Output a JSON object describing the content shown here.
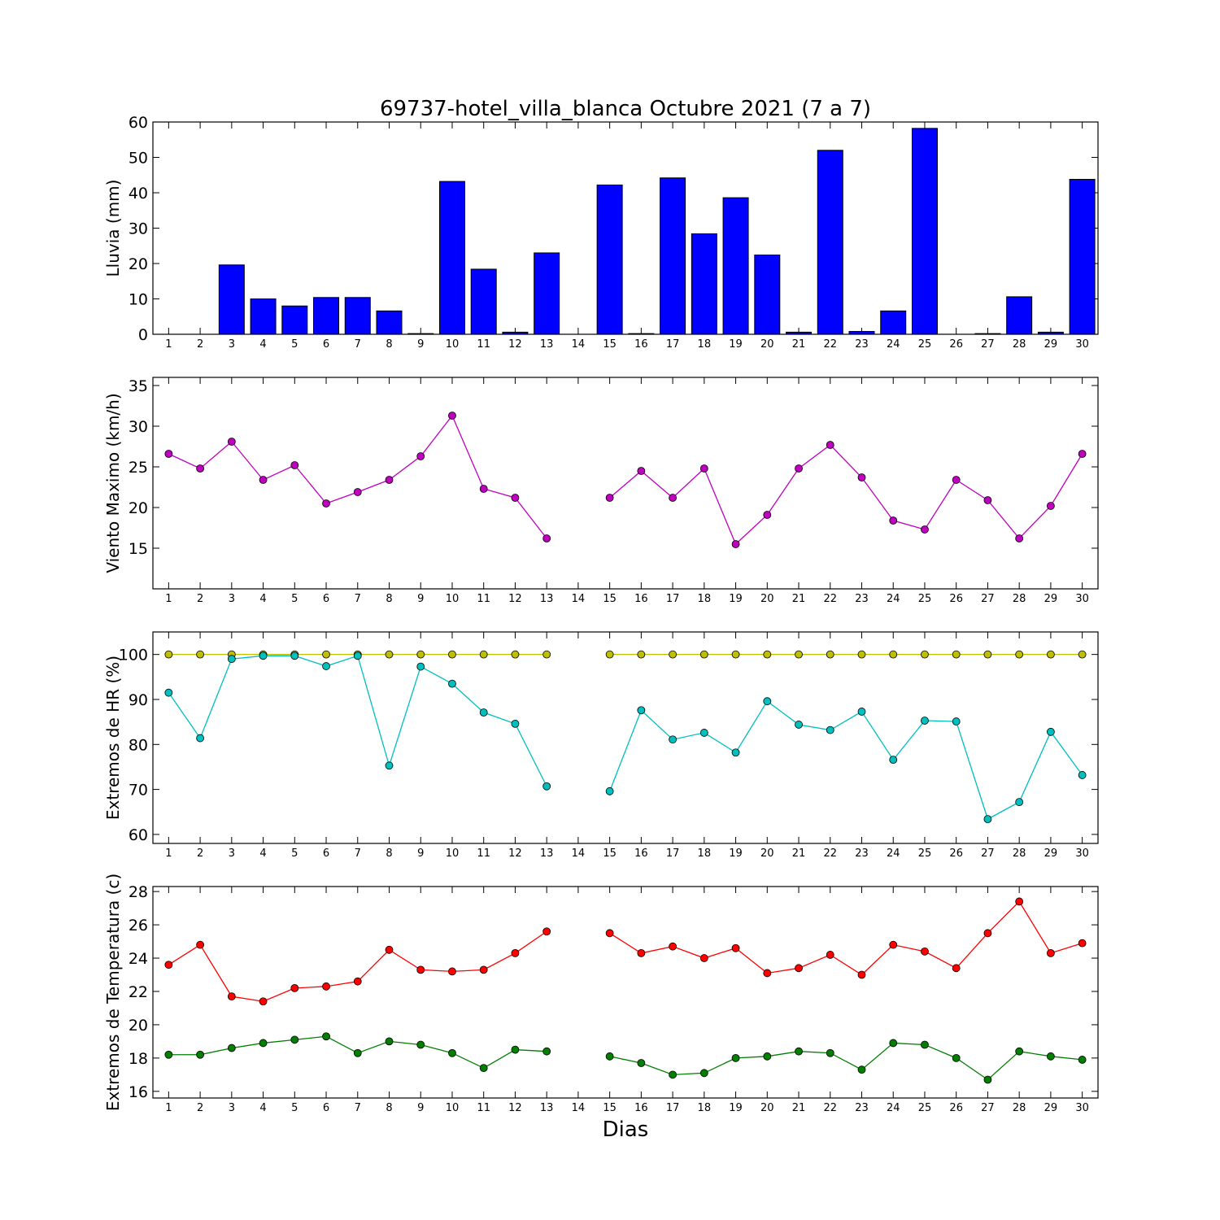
{
  "chart_data": [
    {
      "type": "bar",
      "title": "69737-hotel_villa_blanca Octubre 2021  (7 a 7)",
      "ylabel": "Lluvia (mm)",
      "xlabel": "",
      "ylim": [
        0,
        60
      ],
      "yticks": [
        0,
        10,
        20,
        30,
        40,
        50,
        60
      ],
      "categories": [
        1,
        2,
        3,
        4,
        5,
        6,
        7,
        8,
        9,
        10,
        11,
        12,
        13,
        14,
        15,
        16,
        17,
        18,
        19,
        20,
        21,
        22,
        23,
        24,
        25,
        26,
        27,
        28,
        29,
        30
      ],
      "series": [
        {
          "color": "#0000ff",
          "values": [
            0,
            0,
            19.6,
            10,
            8,
            10.4,
            10.4,
            6.6,
            0.2,
            43.2,
            18.4,
            0.6,
            23,
            null,
            42.2,
            0.2,
            44.2,
            28.4,
            38.6,
            22.4,
            0.6,
            52,
            0.8,
            6.6,
            58.2,
            null,
            0.2,
            10.6,
            0.6,
            43.8
          ]
        }
      ],
      "grid": false
    },
    {
      "type": "line",
      "ylabel": "Viento Maximo (km/h)",
      "xlabel": "",
      "ylim": [
        10,
        36
      ],
      "yticks": [
        15,
        20,
        25,
        30,
        35
      ],
      "categories": [
        1,
        2,
        3,
        4,
        5,
        6,
        7,
        8,
        9,
        10,
        11,
        12,
        13,
        14,
        15,
        16,
        17,
        18,
        19,
        20,
        21,
        22,
        23,
        24,
        25,
        26,
        27,
        28,
        29,
        30
      ],
      "series": [
        {
          "color": "#bf00bf",
          "values": [
            26.6,
            24.8,
            28.1,
            23.4,
            25.2,
            20.5,
            21.9,
            23.4,
            26.3,
            31.3,
            22.3,
            21.2,
            16.2,
            null,
            21.2,
            24.5,
            21.2,
            24.8,
            15.5,
            19.1,
            24.8,
            27.7,
            23.7,
            18.4,
            17.3,
            23.4,
            20.9,
            16.2,
            20.2,
            26.6
          ]
        }
      ],
      "grid": false
    },
    {
      "type": "line",
      "ylabel": "Extremos de HR (%)",
      "xlabel": "",
      "ylim": [
        58,
        105
      ],
      "yticks": [
        60,
        70,
        80,
        90,
        100
      ],
      "categories": [
        1,
        2,
        3,
        4,
        5,
        6,
        7,
        8,
        9,
        10,
        11,
        12,
        13,
        14,
        15,
        16,
        17,
        18,
        19,
        20,
        21,
        22,
        23,
        24,
        25,
        26,
        27,
        28,
        29,
        30
      ],
      "series": [
        {
          "color": "#bfbf00",
          "values": [
            100,
            100,
            100,
            100,
            100,
            100,
            100,
            100,
            100,
            100,
            100,
            100,
            100,
            null,
            100,
            100,
            100,
            100,
            100,
            100,
            100,
            100,
            100,
            100,
            100,
            100,
            100,
            100,
            100,
            100
          ]
        },
        {
          "color": "#00bfbf",
          "values": [
            91.5,
            81.4,
            99,
            99.7,
            99.7,
            97.4,
            99.7,
            75.3,
            97.3,
            93.5,
            87.1,
            84.6,
            70.7,
            null,
            69.6,
            87.6,
            81.1,
            82.6,
            78.2,
            89.6,
            84.4,
            83.2,
            87.3,
            76.6,
            85.3,
            85.1,
            63.4,
            67.2,
            82.8,
            73.2
          ]
        }
      ],
      "grid": false
    },
    {
      "type": "line",
      "ylabel": "Extremos de Temperatura (c)",
      "xlabel": "Dias",
      "ylim": [
        15.6,
        28.3
      ],
      "yticks": [
        16,
        18,
        20,
        22,
        24,
        26,
        28
      ],
      "categories": [
        1,
        2,
        3,
        4,
        5,
        6,
        7,
        8,
        9,
        10,
        11,
        12,
        13,
        14,
        15,
        16,
        17,
        18,
        19,
        20,
        21,
        22,
        23,
        24,
        25,
        26,
        27,
        28,
        29,
        30
      ],
      "series": [
        {
          "color": "#ff0000",
          "values": [
            23.6,
            24.8,
            21.7,
            21.4,
            22.2,
            22.3,
            22.6,
            24.5,
            23.3,
            23.2,
            23.3,
            24.3,
            25.6,
            null,
            25.5,
            24.3,
            24.7,
            24.0,
            24.6,
            23.1,
            23.4,
            24.2,
            23.0,
            24.8,
            24.4,
            23.4,
            25.5,
            27.4,
            24.3,
            24.9
          ]
        },
        {
          "color": "#007f00",
          "values": [
            18.2,
            18.2,
            18.6,
            18.9,
            19.1,
            19.3,
            18.3,
            19.0,
            18.8,
            18.3,
            17.4,
            18.5,
            18.4,
            null,
            18.1,
            17.7,
            17.0,
            17.1,
            18.0,
            18.1,
            18.4,
            18.3,
            17.3,
            18.9,
            18.8,
            18.0,
            16.7,
            18.4,
            18.1,
            17.9
          ]
        }
      ],
      "grid": false
    }
  ]
}
